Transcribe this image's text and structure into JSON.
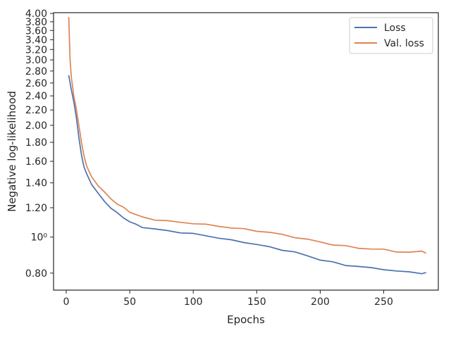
{
  "chart_data": {
    "type": "line",
    "xlabel": "Epochs",
    "ylabel": "Negative log-likelihood",
    "xlim": [
      -10,
      293
    ],
    "ylim": [
      0.72,
      4.02
    ],
    "yscale": "log",
    "grid": false,
    "legend_position": "top-right",
    "x_ticks": [
      0,
      50,
      100,
      150,
      200,
      250
    ],
    "y_ticks": [
      {
        "value": 0.8,
        "label": "0.80"
      },
      {
        "value": 1.0,
        "label": "10⁰"
      },
      {
        "value": 1.2,
        "label": "1.20"
      },
      {
        "value": 1.4,
        "label": "1.40"
      },
      {
        "value": 1.6,
        "label": "1.60"
      },
      {
        "value": 1.8,
        "label": "1.80"
      },
      {
        "value": 2.0,
        "label": "2.00"
      },
      {
        "value": 2.2,
        "label": "2.20"
      },
      {
        "value": 2.4,
        "label": "2.40"
      },
      {
        "value": 2.6,
        "label": "2.60"
      },
      {
        "value": 2.8,
        "label": "2.80"
      },
      {
        "value": 3.0,
        "label": "3.00"
      },
      {
        "value": 3.2,
        "label": "3.20"
      },
      {
        "value": 3.4,
        "label": "3.40"
      },
      {
        "value": 3.6,
        "label": "3.60"
      },
      {
        "value": 3.8,
        "label": "3.80"
      },
      {
        "value": 4.0,
        "label": "4.00"
      }
    ],
    "series": [
      {
        "name": "Loss",
        "color": "#4c72b0",
        "x": [
          2,
          4,
          6,
          8,
          10,
          12,
          14,
          16,
          18,
          20,
          25,
          30,
          35,
          40,
          45,
          50,
          55,
          60,
          70,
          80,
          90,
          100,
          110,
          120,
          130,
          140,
          150,
          160,
          170,
          180,
          190,
          200,
          210,
          220,
          230,
          240,
          250,
          260,
          270,
          280,
          283
        ],
        "y": [
          2.72,
          2.5,
          2.3,
          2.1,
          1.85,
          1.66,
          1.55,
          1.48,
          1.43,
          1.39,
          1.31,
          1.25,
          1.2,
          1.16,
          1.13,
          1.1,
          1.08,
          1.065,
          1.05,
          1.04,
          1.03,
          1.02,
          1.01,
          0.995,
          0.98,
          0.97,
          0.955,
          0.94,
          0.925,
          0.91,
          0.89,
          0.87,
          0.855,
          0.84,
          0.835,
          0.825,
          0.82,
          0.81,
          0.805,
          0.8,
          0.8
        ]
      },
      {
        "name": "Val. loss",
        "color": "#dd8452",
        "x": [
          2,
          3,
          4,
          6,
          8,
          10,
          12,
          14,
          16,
          18,
          20,
          25,
          30,
          35,
          40,
          45,
          50,
          55,
          60,
          70,
          80,
          90,
          100,
          110,
          120,
          130,
          140,
          150,
          160,
          170,
          180,
          190,
          200,
          210,
          220,
          230,
          240,
          250,
          260,
          270,
          280,
          283
        ],
        "y": [
          3.92,
          3.0,
          2.7,
          2.4,
          2.2,
          2.0,
          1.8,
          1.65,
          1.56,
          1.5,
          1.45,
          1.38,
          1.32,
          1.27,
          1.23,
          1.2,
          1.17,
          1.15,
          1.13,
          1.115,
          1.105,
          1.095,
          1.09,
          1.08,
          1.07,
          1.06,
          1.05,
          1.04,
          1.03,
          1.015,
          1.0,
          0.985,
          0.97,
          0.955,
          0.945,
          0.935,
          0.93,
          0.925,
          0.915,
          0.91,
          0.915,
          0.91
        ]
      }
    ]
  }
}
